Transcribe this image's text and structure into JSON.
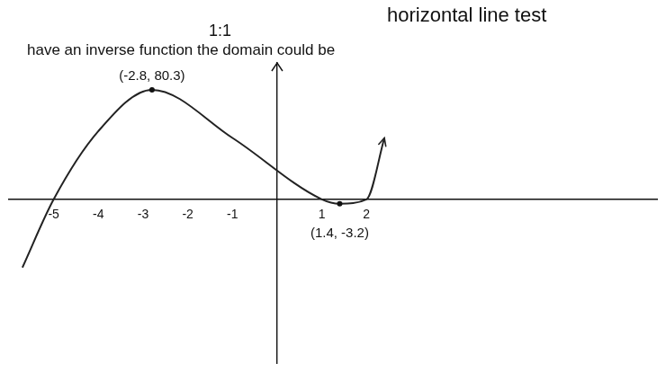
{
  "chart_data": {
    "type": "line",
    "title": "have an inverse function the domain could be",
    "annotations": [
      {
        "text": "horizontal line test"
      },
      {
        "text": "1:1"
      },
      {
        "text": "(-2.8, 80.3)",
        "x": -2.8,
        "y": 80.3
      },
      {
        "text": "(1.4, -3.2)",
        "x": 1.4,
        "y": -3.2
      }
    ],
    "x": [
      -5.7,
      -5,
      -4,
      -2.8,
      -1,
      1,
      1.4,
      2,
      2.4
    ],
    "values": [
      -50,
      0,
      50,
      80.3,
      45,
      0,
      -3.2,
      0,
      45
    ],
    "color": "#222222",
    "marker": "none",
    "line_style": "solid",
    "xlim": [
      -6,
      8.5
    ],
    "xticks": [
      -5,
      -4,
      -3,
      -2,
      -1,
      1,
      2
    ],
    "ylim": [
      -120,
      100
    ],
    "tick_labels": "x",
    "grid": false
  }
}
